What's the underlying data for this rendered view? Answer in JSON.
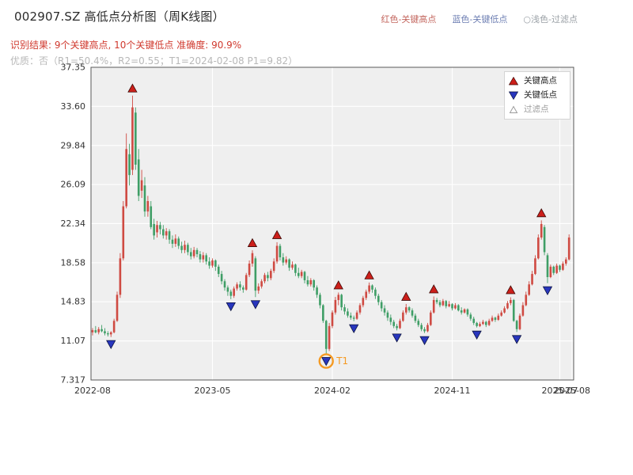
{
  "header": {
    "title": "002907.SZ 高低点分析图（周K线图）",
    "legend_top": [
      {
        "label": "红色-关键高点",
        "color": "#c3665e"
      },
      {
        "label": "蓝色-关键低点",
        "color": "#6e7fb3"
      },
      {
        "label": "○浅色-过滤点",
        "color": "#9aa0a6"
      }
    ],
    "result_line": "识别结果: 9个关键高点, 10个关键低点  准确度: 90.9%",
    "quality_line": "优质：否（R1=50.4%，R2=0.55；T1=2024-02-08 P1=9.82）"
  },
  "chart_data": {
    "type": "candlestick",
    "symbol": "002907.SZ",
    "timeframe": "周K线",
    "title": "002907.SZ 高低点分析图（周K线图）",
    "y_range": [
      7.317,
      37.35
    ],
    "y_ticks": [
      "37.35",
      "33.60",
      "29.84",
      "26.09",
      "22.34",
      "18.58",
      "14.83",
      "11.07",
      "7.317"
    ],
    "x_ticks": [
      {
        "i": 0,
        "label": "2022-08",
        "grid": false
      },
      {
        "i": 39,
        "label": "2023-05",
        "grid": true
      },
      {
        "i": 78,
        "label": "2024-02",
        "grid": true
      },
      {
        "i": 117,
        "label": "2024-11",
        "grid": true
      },
      {
        "i": 152,
        "label": "2025-07",
        "grid": true
      },
      {
        "i": 156,
        "label": "2025-08",
        "grid": true
      }
    ],
    "candles": [
      [
        11.9,
        12.3,
        11.6,
        12.1
      ],
      [
        12.1,
        12.5,
        11.8,
        11.9
      ],
      [
        11.9,
        12.4,
        11.7,
        12.2
      ],
      [
        12.2,
        12.6,
        11.9,
        12.0
      ],
      [
        12.0,
        12.3,
        11.6,
        11.8
      ],
      [
        11.8,
        12.0,
        11.5,
        11.7
      ],
      [
        11.7,
        12.0,
        11.45,
        11.9
      ],
      [
        11.9,
        13.2,
        11.8,
        13.0
      ],
      [
        13.0,
        15.8,
        12.9,
        15.5
      ],
      [
        15.5,
        19.5,
        15.2,
        19.0
      ],
      [
        19.0,
        24.5,
        18.8,
        24.0
      ],
      [
        24.0,
        31.0,
        23.8,
        29.5
      ],
      [
        29.0,
        30.0,
        26.0,
        27.0
      ],
      [
        27.5,
        34.63,
        27.0,
        33.5
      ],
      [
        33.0,
        33.5,
        27.5,
        28.0
      ],
      [
        28.5,
        29.5,
        24.5,
        25.0
      ],
      [
        25.5,
        27.5,
        24.8,
        26.5
      ],
      [
        26.0,
        26.8,
        23.0,
        23.5
      ],
      [
        23.5,
        25.0,
        23.0,
        24.5
      ],
      [
        24.0,
        24.5,
        21.8,
        22.0
      ],
      [
        22.3,
        22.8,
        20.8,
        21.2
      ],
      [
        21.5,
        22.6,
        21.0,
        22.2
      ],
      [
        22.2,
        22.5,
        21.3,
        21.8
      ],
      [
        21.8,
        22.2,
        20.9,
        21.2
      ],
      [
        21.2,
        21.9,
        20.8,
        21.6
      ],
      [
        21.6,
        21.8,
        20.4,
        20.8
      ],
      [
        20.8,
        21.2,
        20.0,
        20.4
      ],
      [
        20.4,
        21.3,
        20.1,
        20.9
      ],
      [
        20.9,
        21.1,
        19.9,
        20.2
      ],
      [
        20.2,
        20.6,
        19.5,
        19.8
      ],
      [
        19.8,
        20.7,
        19.5,
        20.3
      ],
      [
        20.3,
        20.5,
        19.3,
        19.6
      ],
      [
        19.6,
        20.0,
        18.9,
        19.2
      ],
      [
        19.2,
        20.1,
        19.0,
        19.8
      ],
      [
        19.8,
        20.0,
        19.1,
        19.4
      ],
      [
        19.4,
        19.7,
        18.6,
        18.9
      ],
      [
        18.9,
        19.6,
        18.6,
        19.3
      ],
      [
        19.3,
        19.5,
        18.4,
        18.7
      ],
      [
        18.7,
        19.1,
        18.0,
        18.3
      ],
      [
        18.3,
        19.0,
        18.1,
        18.8
      ],
      [
        18.8,
        18.9,
        17.8,
        18.2
      ],
      [
        18.2,
        18.4,
        17.2,
        17.5
      ],
      [
        17.5,
        17.8,
        16.5,
        16.8
      ],
      [
        16.8,
        17.0,
        15.9,
        16.2
      ],
      [
        16.2,
        16.4,
        15.4,
        15.8
      ],
      [
        15.8,
        16.0,
        15.08,
        15.4
      ],
      [
        15.4,
        16.3,
        15.2,
        16.1
      ],
      [
        16.1,
        16.7,
        15.9,
        16.5
      ],
      [
        16.5,
        16.8,
        15.9,
        16.2
      ],
      [
        16.2,
        16.4,
        15.7,
        16.0
      ],
      [
        16.0,
        17.6,
        15.9,
        17.4
      ],
      [
        17.4,
        18.8,
        17.2,
        18.5
      ],
      [
        18.5,
        19.78,
        18.2,
        19.5
      ],
      [
        19.0,
        19.2,
        15.28,
        15.9
      ],
      [
        15.9,
        16.6,
        15.6,
        16.3
      ],
      [
        16.3,
        17.0,
        16.1,
        16.8
      ],
      [
        16.8,
        17.6,
        16.6,
        17.4
      ],
      [
        17.4,
        17.7,
        16.8,
        17.1
      ],
      [
        17.1,
        18.0,
        16.9,
        17.8
      ],
      [
        17.8,
        19.0,
        17.6,
        18.7
      ],
      [
        18.7,
        20.55,
        18.5,
        20.2
      ],
      [
        20.2,
        20.4,
        18.8,
        19.1
      ],
      [
        19.1,
        19.5,
        18.3,
        18.6
      ],
      [
        18.6,
        19.2,
        18.4,
        18.9
      ],
      [
        18.9,
        19.0,
        17.8,
        18.1
      ],
      [
        18.1,
        18.7,
        17.9,
        18.4
      ],
      [
        18.4,
        18.5,
        17.3,
        17.6
      ],
      [
        17.6,
        18.1,
        17.1,
        17.3
      ],
      [
        17.3,
        17.9,
        17.1,
        17.7
      ],
      [
        17.7,
        17.8,
        16.6,
        16.9
      ],
      [
        16.9,
        17.3,
        16.3,
        16.5
      ],
      [
        16.5,
        17.1,
        16.3,
        16.9
      ],
      [
        16.9,
        17.0,
        15.9,
        16.2
      ],
      [
        16.2,
        16.4,
        15.2,
        15.5
      ],
      [
        15.5,
        15.7,
        14.2,
        14.5
      ],
      [
        14.5,
        14.6,
        12.8,
        13.0
      ],
      [
        13.0,
        13.1,
        9.82,
        10.3
      ],
      [
        10.3,
        12.8,
        10.1,
        12.5
      ],
      [
        12.5,
        14.0,
        12.3,
        13.8
      ],
      [
        13.8,
        15.3,
        13.6,
        15.0
      ],
      [
        15.0,
        15.72,
        14.5,
        15.5
      ],
      [
        15.5,
        15.6,
        14.0,
        14.3
      ],
      [
        14.3,
        14.6,
        13.6,
        13.9
      ],
      [
        13.9,
        14.2,
        13.3,
        13.5
      ],
      [
        13.5,
        13.8,
        13.1,
        13.3
      ],
      [
        13.3,
        13.5,
        12.97,
        13.2
      ],
      [
        13.2,
        14.0,
        13.1,
        13.8
      ],
      [
        13.8,
        14.7,
        13.6,
        14.5
      ],
      [
        14.5,
        15.4,
        14.3,
        15.2
      ],
      [
        15.2,
        16.0,
        15.0,
        15.8
      ],
      [
        15.8,
        16.68,
        15.6,
        16.4
      ],
      [
        16.4,
        16.5,
        15.7,
        16.0
      ],
      [
        16.0,
        16.2,
        15.1,
        15.4
      ],
      [
        15.4,
        15.6,
        14.5,
        14.8
      ],
      [
        14.8,
        15.0,
        13.9,
        14.2
      ],
      [
        14.2,
        14.5,
        13.5,
        13.8
      ],
      [
        13.8,
        14.0,
        13.0,
        13.3
      ],
      [
        13.3,
        13.6,
        12.6,
        12.9
      ],
      [
        12.9,
        13.1,
        12.3,
        12.5
      ],
      [
        12.5,
        12.7,
        12.08,
        12.3
      ],
      [
        12.3,
        13.2,
        12.2,
        13.0
      ],
      [
        13.0,
        14.0,
        12.9,
        13.8
      ],
      [
        13.8,
        14.62,
        13.6,
        14.3
      ],
      [
        14.3,
        14.4,
        13.8,
        14.0
      ],
      [
        14.0,
        14.2,
        13.3,
        13.5
      ],
      [
        13.5,
        13.7,
        12.8,
        13.0
      ],
      [
        13.0,
        13.2,
        12.4,
        12.6
      ],
      [
        12.6,
        12.8,
        12.0,
        12.2
      ],
      [
        12.2,
        12.4,
        11.83,
        12.0
      ],
      [
        12.0,
        12.8,
        11.9,
        12.6
      ],
      [
        12.6,
        14.0,
        12.5,
        13.8
      ],
      [
        13.8,
        15.34,
        13.7,
        15.0
      ],
      [
        15.0,
        15.2,
        14.6,
        14.8
      ],
      [
        14.8,
        15.0,
        14.3,
        14.5
      ],
      [
        14.5,
        15.1,
        14.4,
        14.9
      ],
      [
        14.9,
        15.0,
        14.2,
        14.4
      ],
      [
        14.4,
        14.9,
        14.3,
        14.6
      ],
      [
        14.6,
        14.7,
        14.0,
        14.2
      ],
      [
        14.2,
        14.7,
        14.1,
        14.5
      ],
      [
        14.5,
        14.6,
        13.9,
        14.0
      ],
      [
        14.0,
        14.3,
        13.6,
        13.8
      ],
      [
        13.8,
        14.2,
        13.7,
        14.1
      ],
      [
        14.1,
        14.2,
        13.4,
        13.6
      ],
      [
        13.6,
        13.8,
        13.0,
        13.2
      ],
      [
        13.2,
        13.4,
        12.6,
        12.8
      ],
      [
        12.8,
        12.9,
        12.36,
        12.5
      ],
      [
        12.5,
        12.9,
        12.4,
        12.7
      ],
      [
        12.7,
        13.1,
        12.6,
        12.9
      ],
      [
        12.9,
        13.0,
        12.4,
        12.6
      ],
      [
        12.6,
        13.2,
        12.5,
        13.0
      ],
      [
        13.0,
        13.5,
        12.9,
        13.3
      ],
      [
        13.3,
        13.4,
        12.9,
        13.1
      ],
      [
        13.1,
        13.7,
        13.0,
        13.5
      ],
      [
        13.5,
        14.0,
        13.4,
        13.8
      ],
      [
        13.8,
        14.4,
        13.7,
        14.2
      ],
      [
        14.2,
        14.9,
        14.1,
        14.7
      ],
      [
        14.7,
        15.26,
        14.5,
        15.0
      ],
      [
        15.0,
        15.1,
        12.9,
        13.0
      ],
      [
        13.0,
        13.1,
        11.93,
        12.2
      ],
      [
        12.2,
        13.7,
        12.1,
        13.5
      ],
      [
        13.5,
        14.8,
        13.4,
        14.5
      ],
      [
        14.5,
        15.8,
        14.4,
        15.5
      ],
      [
        15.5,
        16.8,
        15.4,
        16.5
      ],
      [
        16.5,
        17.8,
        16.4,
        17.5
      ],
      [
        17.5,
        19.3,
        17.4,
        19.0
      ],
      [
        19.0,
        21.3,
        18.9,
        21.0
      ],
      [
        21.0,
        22.65,
        20.8,
        22.3
      ],
      [
        22.0,
        22.2,
        19.3,
        19.6
      ],
      [
        19.3,
        19.5,
        16.62,
        17.2
      ],
      [
        17.2,
        18.4,
        17.1,
        18.2
      ],
      [
        18.2,
        18.3,
        17.4,
        17.6
      ],
      [
        17.6,
        18.5,
        17.5,
        18.3
      ],
      [
        18.3,
        18.4,
        17.7,
        17.9
      ],
      [
        17.9,
        18.7,
        17.8,
        18.5
      ],
      [
        18.5,
        19.1,
        18.3,
        18.9
      ],
      [
        18.9,
        21.3,
        18.8,
        21.0
      ]
    ],
    "key_high_indices": [
      13,
      52,
      60,
      80,
      90,
      102,
      111,
      136,
      146
    ],
    "key_low_indices": [
      6,
      45,
      53,
      76,
      85,
      99,
      108,
      125,
      138,
      148
    ],
    "t1": {
      "index": 76,
      "label": "T1",
      "date": "2024-02-08",
      "price": 9.82
    },
    "legend_box": [
      {
        "marker": "up-triangle",
        "label": "关键高点"
      },
      {
        "marker": "down-triangle",
        "label": "关键低点"
      },
      {
        "marker": "hollow-triangle",
        "label": "过滤点"
      }
    ],
    "colors": {
      "up": "#cf4a42",
      "down": "#3f9e66",
      "key_high": "#cc1f1a",
      "key_low": "#2836bd",
      "t1": "#f59a23",
      "plot_bg": "#efefef",
      "grid": "#ffffff",
      "spine": "#5a5a5a",
      "tick_text": "#333333"
    },
    "legend_position": "upper right",
    "grid": true
  }
}
